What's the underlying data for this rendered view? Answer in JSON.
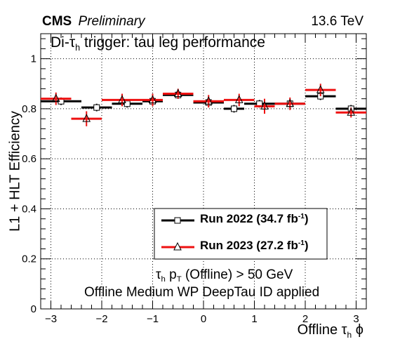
{
  "header": {
    "experiment": "CMS",
    "status": "Preliminary",
    "energy": "13.6 TeV"
  },
  "chart_data": {
    "type": "scatter",
    "title_prefix": "Di-",
    "title_tau": "τ",
    "title_sub": "h",
    "title_suffix": " trigger: tau leg performance",
    "ylabel": "L1 + HLT Efficiency",
    "xlabel_prefix": "Offline ",
    "xlabel_tau": "τ",
    "xlabel_sub": "h",
    "xlabel_suffix": " ϕ",
    "xlim": [
      -3.2,
      3.2
    ],
    "ylim": [
      0,
      1.1
    ],
    "xticks": [
      -3,
      -2,
      -1,
      0,
      1,
      2,
      3
    ],
    "xtick_labels": [
      "−3",
      "−2",
      "−1",
      "0",
      "1",
      "2",
      "3"
    ],
    "yticks": [
      0,
      0.2,
      0.4,
      0.6,
      0.8,
      1
    ],
    "ytick_labels": [
      "0",
      "0.2",
      "0.4",
      "0.6",
      "0.8",
      "1"
    ],
    "grid": true,
    "legend_placement": "bottom-right",
    "series": [
      {
        "name_text": "Run 2022 (34.7 fb",
        "name_sup": "-1",
        "name_close": ")",
        "color": "#000000",
        "marker": "open-square",
        "x_low": [
          -3.2,
          -2.4,
          -1.8,
          -1.2,
          -0.8,
          -0.2,
          0.4,
          0.8,
          1.4,
          2.0,
          2.6
        ],
        "x_high": [
          -2.4,
          -1.8,
          -1.2,
          -0.8,
          -0.2,
          0.4,
          0.8,
          1.4,
          2.0,
          2.6,
          3.2
        ],
        "y": [
          0.83,
          0.805,
          0.82,
          0.83,
          0.855,
          0.825,
          0.8,
          0.82,
          0.82,
          0.85,
          0.8
        ],
        "y_err": [
          0.015,
          0.015,
          0.015,
          0.015,
          0.015,
          0.015,
          0.015,
          0.015,
          0.015,
          0.015,
          0.015
        ]
      },
      {
        "name_text": "Run 2023 (27.2 fb",
        "name_sup": "-1",
        "name_close": ")",
        "color": "#ee1111",
        "marker": "open-triangle",
        "x_low": [
          -3.2,
          -2.6,
          -2.0,
          -1.2,
          -0.8,
          -0.2,
          0.4,
          1.0,
          1.4,
          2.0,
          2.6
        ],
        "x_high": [
          -2.6,
          -2.0,
          -1.2,
          -0.8,
          -0.2,
          0.4,
          1.0,
          1.4,
          2.0,
          2.6,
          3.2
        ],
        "y": [
          0.84,
          0.76,
          0.835,
          0.835,
          0.86,
          0.83,
          0.835,
          0.81,
          0.82,
          0.875,
          0.785
        ],
        "y_err": [
          0.025,
          0.03,
          0.025,
          0.025,
          0.02,
          0.025,
          0.025,
          0.03,
          0.025,
          0.025,
          0.02
        ]
      }
    ],
    "annotations": {
      "line1_tau": "τ",
      "line1_sub": "h",
      "line1_p": " p",
      "line1_psub": "T",
      "line1_rest": " (Offline) > 50 GeV",
      "line2": "Offline Medium WP DeepTau ID applied"
    }
  }
}
